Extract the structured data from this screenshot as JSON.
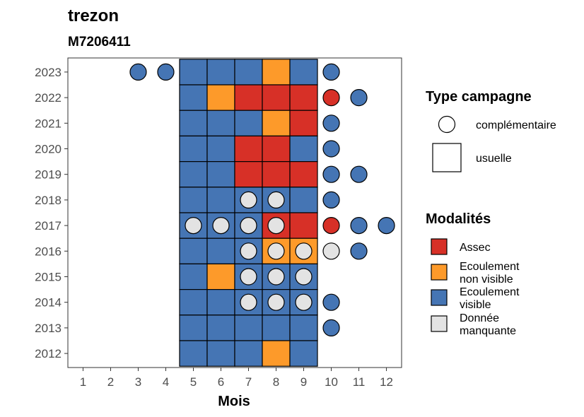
{
  "chart_data": {
    "type": "heatmap",
    "title": "trezon",
    "subtitle": "M7206411",
    "xlabel": "Mois",
    "ylabel": "",
    "x_ticks": [
      1,
      2,
      3,
      4,
      5,
      6,
      7,
      8,
      9,
      10,
      11,
      12
    ],
    "y_ticks": [
      2012,
      2013,
      2014,
      2015,
      2016,
      2017,
      2018,
      2019,
      2020,
      2021,
      2022,
      2023
    ],
    "grid": false,
    "legend_placement": "right",
    "legends": {
      "shape_title": "Type campagne",
      "shape_items": [
        {
          "key": "complementaire",
          "label": "complémentaire",
          "shape": "circle"
        },
        {
          "key": "usuelle",
          "label": "usuelle",
          "shape": "square"
        }
      ],
      "fill_title": "Modalités",
      "fill_items": [
        {
          "key": "assec",
          "lines": [
            "Assec"
          ],
          "color": "#d73027"
        },
        {
          "key": "ecnv",
          "lines": [
            "Ecoulement",
            "non visible"
          ],
          "color": "#fd9a2a"
        },
        {
          "key": "ecv",
          "lines": [
            "Ecoulement",
            "visible"
          ],
          "color": "#4575b4"
        },
        {
          "key": "nd",
          "lines": [
            "Donnée",
            "manquante"
          ],
          "color": "#e3e3e3"
        }
      ]
    },
    "points": [
      {
        "year": 2023,
        "month": 3,
        "campaign": "complementaire",
        "modality": "ecv"
      },
      {
        "year": 2023,
        "month": 4,
        "campaign": "complementaire",
        "modality": "ecv"
      },
      {
        "year": 2023,
        "month": 5,
        "campaign": "usuelle",
        "modality": "ecv"
      },
      {
        "year": 2023,
        "month": 6,
        "campaign": "usuelle",
        "modality": "ecv"
      },
      {
        "year": 2023,
        "month": 7,
        "campaign": "usuelle",
        "modality": "ecv"
      },
      {
        "year": 2023,
        "month": 8,
        "campaign": "usuelle",
        "modality": "ecnv"
      },
      {
        "year": 2023,
        "month": 9,
        "campaign": "usuelle",
        "modality": "ecv"
      },
      {
        "year": 2023,
        "month": 10,
        "campaign": "complementaire",
        "modality": "ecv"
      },
      {
        "year": 2022,
        "month": 5,
        "campaign": "usuelle",
        "modality": "ecv"
      },
      {
        "year": 2022,
        "month": 6,
        "campaign": "usuelle",
        "modality": "ecnv"
      },
      {
        "year": 2022,
        "month": 7,
        "campaign": "usuelle",
        "modality": "assec"
      },
      {
        "year": 2022,
        "month": 8,
        "campaign": "usuelle",
        "modality": "assec"
      },
      {
        "year": 2022,
        "month": 9,
        "campaign": "usuelle",
        "modality": "assec"
      },
      {
        "year": 2022,
        "month": 10,
        "campaign": "complementaire",
        "modality": "assec"
      },
      {
        "year": 2022,
        "month": 11,
        "campaign": "complementaire",
        "modality": "ecv"
      },
      {
        "year": 2021,
        "month": 5,
        "campaign": "usuelle",
        "modality": "ecv"
      },
      {
        "year": 2021,
        "month": 6,
        "campaign": "usuelle",
        "modality": "ecv"
      },
      {
        "year": 2021,
        "month": 7,
        "campaign": "usuelle",
        "modality": "ecv"
      },
      {
        "year": 2021,
        "month": 8,
        "campaign": "usuelle",
        "modality": "ecnv"
      },
      {
        "year": 2021,
        "month": 9,
        "campaign": "usuelle",
        "modality": "assec"
      },
      {
        "year": 2021,
        "month": 10,
        "campaign": "complementaire",
        "modality": "ecv"
      },
      {
        "year": 2020,
        "month": 5,
        "campaign": "usuelle",
        "modality": "ecv"
      },
      {
        "year": 2020,
        "month": 6,
        "campaign": "usuelle",
        "modality": "ecv"
      },
      {
        "year": 2020,
        "month": 7,
        "campaign": "usuelle",
        "modality": "assec"
      },
      {
        "year": 2020,
        "month": 8,
        "campaign": "usuelle",
        "modality": "assec"
      },
      {
        "year": 2020,
        "month": 9,
        "campaign": "usuelle",
        "modality": "ecv"
      },
      {
        "year": 2020,
        "month": 10,
        "campaign": "complementaire",
        "modality": "ecv"
      },
      {
        "year": 2019,
        "month": 5,
        "campaign": "usuelle",
        "modality": "ecv"
      },
      {
        "year": 2019,
        "month": 6,
        "campaign": "usuelle",
        "modality": "ecv"
      },
      {
        "year": 2019,
        "month": 7,
        "campaign": "usuelle",
        "modality": "assec"
      },
      {
        "year": 2019,
        "month": 8,
        "campaign": "usuelle",
        "modality": "assec"
      },
      {
        "year": 2019,
        "month": 9,
        "campaign": "usuelle",
        "modality": "assec"
      },
      {
        "year": 2019,
        "month": 10,
        "campaign": "complementaire",
        "modality": "ecv"
      },
      {
        "year": 2019,
        "month": 11,
        "campaign": "complementaire",
        "modality": "ecv"
      },
      {
        "year": 2018,
        "month": 5,
        "campaign": "usuelle",
        "modality": "ecv"
      },
      {
        "year": 2018,
        "month": 6,
        "campaign": "usuelle",
        "modality": "ecv"
      },
      {
        "year": 2018,
        "month": 7,
        "campaign": "usuelle",
        "modality": "ecv"
      },
      {
        "year": 2018,
        "month": 7,
        "campaign": "complementaire",
        "modality": "nd"
      },
      {
        "year": 2018,
        "month": 8,
        "campaign": "usuelle",
        "modality": "ecv"
      },
      {
        "year": 2018,
        "month": 8,
        "campaign": "complementaire",
        "modality": "nd"
      },
      {
        "year": 2018,
        "month": 9,
        "campaign": "usuelle",
        "modality": "ecv"
      },
      {
        "year": 2018,
        "month": 10,
        "campaign": "complementaire",
        "modality": "ecv"
      },
      {
        "year": 2017,
        "month": 5,
        "campaign": "usuelle",
        "modality": "ecv"
      },
      {
        "year": 2017,
        "month": 5,
        "campaign": "complementaire",
        "modality": "nd"
      },
      {
        "year": 2017,
        "month": 6,
        "campaign": "usuelle",
        "modality": "ecv"
      },
      {
        "year": 2017,
        "month": 6,
        "campaign": "complementaire",
        "modality": "nd"
      },
      {
        "year": 2017,
        "month": 7,
        "campaign": "usuelle",
        "modality": "ecv"
      },
      {
        "year": 2017,
        "month": 7,
        "campaign": "complementaire",
        "modality": "nd"
      },
      {
        "year": 2017,
        "month": 8,
        "campaign": "usuelle",
        "modality": "assec"
      },
      {
        "year": 2017,
        "month": 8,
        "campaign": "complementaire",
        "modality": "nd"
      },
      {
        "year": 2017,
        "month": 9,
        "campaign": "usuelle",
        "modality": "assec"
      },
      {
        "year": 2017,
        "month": 10,
        "campaign": "complementaire",
        "modality": "assec"
      },
      {
        "year": 2017,
        "month": 11,
        "campaign": "complementaire",
        "modality": "ecv"
      },
      {
        "year": 2017,
        "month": 12,
        "campaign": "complementaire",
        "modality": "ecv"
      },
      {
        "year": 2016,
        "month": 5,
        "campaign": "usuelle",
        "modality": "ecv"
      },
      {
        "year": 2016,
        "month": 6,
        "campaign": "usuelle",
        "modality": "ecv"
      },
      {
        "year": 2016,
        "month": 7,
        "campaign": "usuelle",
        "modality": "ecv"
      },
      {
        "year": 2016,
        "month": 7,
        "campaign": "complementaire",
        "modality": "nd"
      },
      {
        "year": 2016,
        "month": 8,
        "campaign": "usuelle",
        "modality": "ecnv"
      },
      {
        "year": 2016,
        "month": 8,
        "campaign": "complementaire",
        "modality": "nd"
      },
      {
        "year": 2016,
        "month": 9,
        "campaign": "usuelle",
        "modality": "ecnv"
      },
      {
        "year": 2016,
        "month": 9,
        "campaign": "complementaire",
        "modality": "nd"
      },
      {
        "year": 2016,
        "month": 10,
        "campaign": "complementaire",
        "modality": "nd"
      },
      {
        "year": 2016,
        "month": 11,
        "campaign": "complementaire",
        "modality": "ecv"
      },
      {
        "year": 2015,
        "month": 5,
        "campaign": "usuelle",
        "modality": "ecv"
      },
      {
        "year": 2015,
        "month": 6,
        "campaign": "usuelle",
        "modality": "ecnv"
      },
      {
        "year": 2015,
        "month": 7,
        "campaign": "usuelle",
        "modality": "ecv"
      },
      {
        "year": 2015,
        "month": 7,
        "campaign": "complementaire",
        "modality": "nd"
      },
      {
        "year": 2015,
        "month": 8,
        "campaign": "usuelle",
        "modality": "ecv"
      },
      {
        "year": 2015,
        "month": 8,
        "campaign": "complementaire",
        "modality": "nd"
      },
      {
        "year": 2015,
        "month": 9,
        "campaign": "usuelle",
        "modality": "ecv"
      },
      {
        "year": 2015,
        "month": 9,
        "campaign": "complementaire",
        "modality": "nd"
      },
      {
        "year": 2014,
        "month": 5,
        "campaign": "usuelle",
        "modality": "ecv"
      },
      {
        "year": 2014,
        "month": 6,
        "campaign": "usuelle",
        "modality": "ecv"
      },
      {
        "year": 2014,
        "month": 7,
        "campaign": "usuelle",
        "modality": "ecv"
      },
      {
        "year": 2014,
        "month": 7,
        "campaign": "complementaire",
        "modality": "nd"
      },
      {
        "year": 2014,
        "month": 8,
        "campaign": "usuelle",
        "modality": "ecv"
      },
      {
        "year": 2014,
        "month": 8,
        "campaign": "complementaire",
        "modality": "nd"
      },
      {
        "year": 2014,
        "month": 9,
        "campaign": "usuelle",
        "modality": "ecv"
      },
      {
        "year": 2014,
        "month": 9,
        "campaign": "complementaire",
        "modality": "nd"
      },
      {
        "year": 2014,
        "month": 10,
        "campaign": "complementaire",
        "modality": "ecv"
      },
      {
        "year": 2013,
        "month": 5,
        "campaign": "usuelle",
        "modality": "ecv"
      },
      {
        "year": 2013,
        "month": 6,
        "campaign": "usuelle",
        "modality": "ecv"
      },
      {
        "year": 2013,
        "month": 7,
        "campaign": "usuelle",
        "modality": "ecv"
      },
      {
        "year": 2013,
        "month": 8,
        "campaign": "usuelle",
        "modality": "ecv"
      },
      {
        "year": 2013,
        "month": 9,
        "campaign": "usuelle",
        "modality": "ecv"
      },
      {
        "year": 2013,
        "month": 10,
        "campaign": "complementaire",
        "modality": "ecv"
      },
      {
        "year": 2012,
        "month": 5,
        "campaign": "usuelle",
        "modality": "ecv"
      },
      {
        "year": 2012,
        "month": 6,
        "campaign": "usuelle",
        "modality": "ecv"
      },
      {
        "year": 2012,
        "month": 7,
        "campaign": "usuelle",
        "modality": "ecv"
      },
      {
        "year": 2012,
        "month": 8,
        "campaign": "usuelle",
        "modality": "ecnv"
      },
      {
        "year": 2012,
        "month": 9,
        "campaign": "usuelle",
        "modality": "ecv"
      }
    ]
  }
}
